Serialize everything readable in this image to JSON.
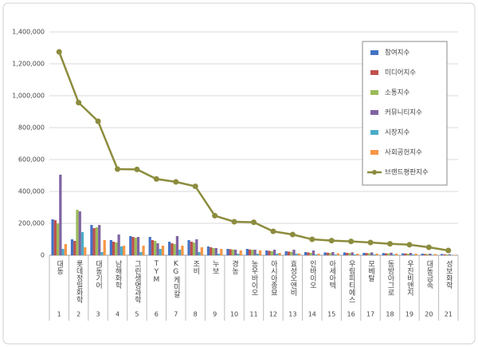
{
  "chart_data": {
    "type": "bar",
    "categories": [
      "대동",
      "롯데정밀화학",
      "대동기어",
      "남해화학",
      "그린생명과학",
      "TYM",
      "KG케미칼",
      "조비",
      "누보",
      "경농",
      "농우바이오",
      "아시아종묘",
      "효성오앤비",
      "인바이오",
      "아세아텍",
      "우림피티에스",
      "모베탈",
      "동방아그로",
      "우진비앤지",
      "대동금속",
      "성보화학"
    ],
    "category_numbers": [
      1,
      2,
      3,
      4,
      5,
      6,
      7,
      8,
      9,
      10,
      11,
      12,
      13,
      14,
      15,
      16,
      17,
      18,
      19,
      20,
      21
    ],
    "ylim": [
      0,
      1400000
    ],
    "yticks": [
      0,
      {
        "value": 200000,
        "label": "200,000"
      },
      {
        "value": 400000,
        "label": "400,000"
      },
      {
        "value": 600000,
        "label": "600,000"
      },
      {
        "value": 800000,
        "label": "800,000"
      },
      {
        "value": 1000000,
        "label": "1,000,000"
      },
      {
        "value": 1200000,
        "label": "1,200,000"
      },
      {
        "value": 1400000,
        "label": "1,400,000"
      }
    ],
    "grid": true,
    "legend": "upper right",
    "series": [
      {
        "name": "참여지수",
        "color": "#4472c4",
        "type": "bar",
        "values": [
          225000,
          100000,
          190000,
          95000,
          120000,
          115000,
          85000,
          95000,
          55000,
          40000,
          40000,
          30000,
          25000,
          20000,
          18000,
          18000,
          15000,
          14000,
          12000,
          10000,
          8000
        ]
      },
      {
        "name": "미디어지수",
        "color": "#c0504d",
        "type": "bar",
        "values": [
          220000,
          90000,
          170000,
          85000,
          115000,
          95000,
          75000,
          85000,
          50000,
          38000,
          36000,
          28000,
          23000,
          18000,
          16000,
          15000,
          14000,
          12000,
          11000,
          8000,
          6000
        ]
      },
      {
        "name": "소통지수",
        "color": "#9bbb59",
        "type": "bar",
        "values": [
          200000,
          285000,
          175000,
          80000,
          110000,
          90000,
          70000,
          80000,
          45000,
          36000,
          34000,
          25000,
          22000,
          15000,
          14000,
          14000,
          13000,
          12000,
          10000,
          8000,
          5000
        ]
      },
      {
        "name": "커뮤니티지수",
        "color": "#8064a2",
        "type": "bar",
        "values": [
          505000,
          275000,
          190000,
          130000,
          115000,
          75000,
          120000,
          100000,
          45000,
          35000,
          35000,
          35000,
          35000,
          30000,
          20000,
          18000,
          18000,
          16000,
          15000,
          10000,
          6000
        ]
      },
      {
        "name": "시장지수",
        "color": "#4bacc6",
        "type": "bar",
        "values": [
          40000,
          145000,
          20000,
          55000,
          20000,
          40000,
          35000,
          20000,
          10000,
          10000,
          10000,
          10000,
          10000,
          5000,
          5000,
          5000,
          5000,
          5000,
          5000,
          3000,
          2000
        ]
      },
      {
        "name": "사회공헌지수",
        "color": "#f79646",
        "type": "bar",
        "values": [
          70000,
          50000,
          95000,
          60000,
          60000,
          60000,
          60000,
          50000,
          40000,
          30000,
          30000,
          15000,
          12000,
          10000,
          12000,
          10000,
          10000,
          10000,
          10000,
          8000,
          3000
        ]
      },
      {
        "name": "브랜드평판지수",
        "color": "#8c8c3e",
        "type": "line",
        "values": [
          1275000,
          957000,
          840000,
          540000,
          538000,
          478000,
          460000,
          432000,
          248000,
          210000,
          207000,
          150000,
          130000,
          100000,
          92000,
          87000,
          80000,
          72000,
          66000,
          50000,
          30000
        ]
      }
    ]
  }
}
